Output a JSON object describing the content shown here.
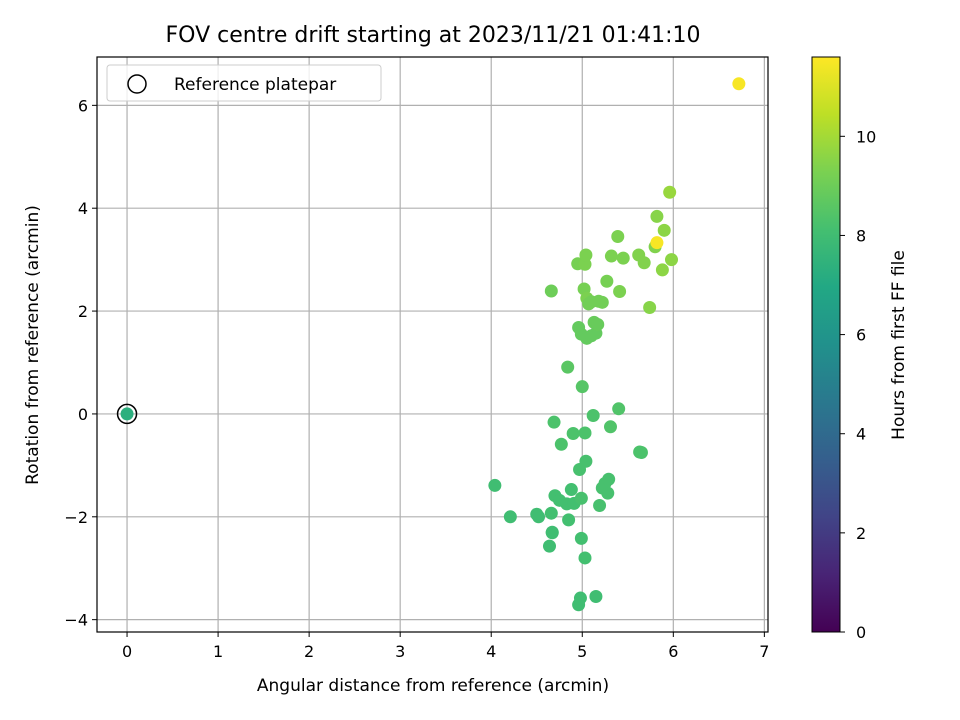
{
  "chart_data": {
    "type": "scatter",
    "title": "FOV centre drift starting at 2023/11/21 01:41:10",
    "xlabel": "Angular distance from reference (arcmin)",
    "ylabel": "Rotation from reference (arcmin)",
    "xlim": [
      -0.33,
      7.04
    ],
    "ylim": [
      -4.24,
      6.94
    ],
    "xticks": [
      0,
      1,
      2,
      3,
      4,
      5,
      6,
      7
    ],
    "yticks": [
      -4,
      -2,
      0,
      2,
      4,
      6
    ],
    "grid": true,
    "legend": {
      "position": "top-left",
      "entries": [
        "Reference platepar"
      ]
    },
    "reference_point": {
      "x": 0,
      "y": 0,
      "label": "Reference platepar",
      "color_value": 7.3
    },
    "colorbar": {
      "label": "Hours from first FF file",
      "min": 0,
      "max": 11.6,
      "ticks": [
        0,
        2,
        4,
        6,
        8,
        10
      ],
      "colormap": "viridis"
    },
    "points": [
      {
        "x": 0.0,
        "y": 0.0,
        "c": 7.3
      },
      {
        "x": 4.04,
        "y": -1.39,
        "c": 8.0
      },
      {
        "x": 4.21,
        "y": -2.0,
        "c": 8.0
      },
      {
        "x": 4.5,
        "y": -1.95,
        "c": 8.0
      },
      {
        "x": 4.52,
        "y": -2.0,
        "c": 8.0
      },
      {
        "x": 4.64,
        "y": -2.57,
        "c": 8.0
      },
      {
        "x": 4.67,
        "y": -2.3,
        "c": 8.0
      },
      {
        "x": 4.67,
        "y": -2.31,
        "c": 8.0
      },
      {
        "x": 4.66,
        "y": -1.93,
        "c": 8.1
      },
      {
        "x": 4.7,
        "y": -1.59,
        "c": 8.1
      },
      {
        "x": 4.75,
        "y": -1.68,
        "c": 8.1
      },
      {
        "x": 4.83,
        "y": -1.75,
        "c": 8.1
      },
      {
        "x": 4.85,
        "y": -2.06,
        "c": 8.1
      },
      {
        "x": 4.88,
        "y": -1.47,
        "c": 8.1
      },
      {
        "x": 4.91,
        "y": -1.74,
        "c": 8.1
      },
      {
        "x": 4.97,
        "y": -1.08,
        "c": 8.2
      },
      {
        "x": 4.99,
        "y": -1.64,
        "c": 8.2
      },
      {
        "x": 4.99,
        "y": -2.42,
        "c": 8.1
      },
      {
        "x": 5.03,
        "y": -2.8,
        "c": 8.1
      },
      {
        "x": 5.04,
        "y": -0.92,
        "c": 8.2
      },
      {
        "x": 4.96,
        "y": -3.71,
        "c": 8.0
      },
      {
        "x": 4.98,
        "y": -3.58,
        "c": 8.0
      },
      {
        "x": 5.15,
        "y": -3.55,
        "c": 8.0
      },
      {
        "x": 5.19,
        "y": -1.78,
        "c": 8.2
      },
      {
        "x": 5.22,
        "y": -1.44,
        "c": 8.2
      },
      {
        "x": 5.25,
        "y": -1.35,
        "c": 8.2
      },
      {
        "x": 5.28,
        "y": -1.54,
        "c": 8.2
      },
      {
        "x": 5.29,
        "y": -1.27,
        "c": 8.2
      },
      {
        "x": 4.69,
        "y": -0.16,
        "c": 8.3
      },
      {
        "x": 4.77,
        "y": -0.59,
        "c": 8.3
      },
      {
        "x": 4.9,
        "y": -0.38,
        "c": 8.3
      },
      {
        "x": 5.03,
        "y": -0.37,
        "c": 8.3
      },
      {
        "x": 5.12,
        "y": -0.03,
        "c": 8.3
      },
      {
        "x": 5.31,
        "y": -0.25,
        "c": 8.4
      },
      {
        "x": 5.4,
        "y": 0.1,
        "c": 8.4
      },
      {
        "x": 5.63,
        "y": -0.74,
        "c": 8.3
      },
      {
        "x": 5.65,
        "y": -0.75,
        "c": 8.3
      },
      {
        "x": 4.84,
        "y": 0.91,
        "c": 8.6
      },
      {
        "x": 5.0,
        "y": 0.53,
        "c": 8.5
      },
      {
        "x": 4.66,
        "y": 2.39,
        "c": 9.0
      },
      {
        "x": 4.96,
        "y": 1.68,
        "c": 8.8
      },
      {
        "x": 4.99,
        "y": 1.55,
        "c": 8.8
      },
      {
        "x": 5.05,
        "y": 1.47,
        "c": 8.8
      },
      {
        "x": 5.1,
        "y": 1.52,
        "c": 8.8
      },
      {
        "x": 5.13,
        "y": 1.78,
        "c": 8.9
      },
      {
        "x": 5.15,
        "y": 1.57,
        "c": 8.8
      },
      {
        "x": 5.17,
        "y": 1.74,
        "c": 8.9
      },
      {
        "x": 5.02,
        "y": 2.43,
        "c": 9.2
      },
      {
        "x": 5.05,
        "y": 2.25,
        "c": 9.3
      },
      {
        "x": 5.07,
        "y": 2.14,
        "c": 9.1
      },
      {
        "x": 5.1,
        "y": 2.18,
        "c": 9.1
      },
      {
        "x": 5.18,
        "y": 2.19,
        "c": 9.1
      },
      {
        "x": 5.22,
        "y": 2.17,
        "c": 9.1
      },
      {
        "x": 5.27,
        "y": 2.58,
        "c": 9.2
      },
      {
        "x": 4.95,
        "y": 2.92,
        "c": 9.2
      },
      {
        "x": 5.03,
        "y": 2.91,
        "c": 9.3
      },
      {
        "x": 5.04,
        "y": 3.09,
        "c": 9.3
      },
      {
        "x": 5.32,
        "y": 3.07,
        "c": 9.3
      },
      {
        "x": 5.39,
        "y": 3.45,
        "c": 9.3
      },
      {
        "x": 5.41,
        "y": 2.38,
        "c": 9.3
      },
      {
        "x": 5.45,
        "y": 3.03,
        "c": 9.3
      },
      {
        "x": 5.62,
        "y": 3.09,
        "c": 9.4
      },
      {
        "x": 5.68,
        "y": 2.94,
        "c": 9.4
      },
      {
        "x": 5.74,
        "y": 2.07,
        "c": 9.5
      },
      {
        "x": 5.8,
        "y": 3.25,
        "c": 9.4
      },
      {
        "x": 5.82,
        "y": 3.84,
        "c": 9.5
      },
      {
        "x": 5.88,
        "y": 2.8,
        "c": 9.6
      },
      {
        "x": 5.9,
        "y": 3.57,
        "c": 9.6
      },
      {
        "x": 5.96,
        "y": 4.31,
        "c": 9.8
      },
      {
        "x": 5.98,
        "y": 3.0,
        "c": 9.6
      },
      {
        "x": 5.82,
        "y": 3.33,
        "c": 11.5
      },
      {
        "x": 6.72,
        "y": 6.42,
        "c": 11.5
      }
    ]
  }
}
